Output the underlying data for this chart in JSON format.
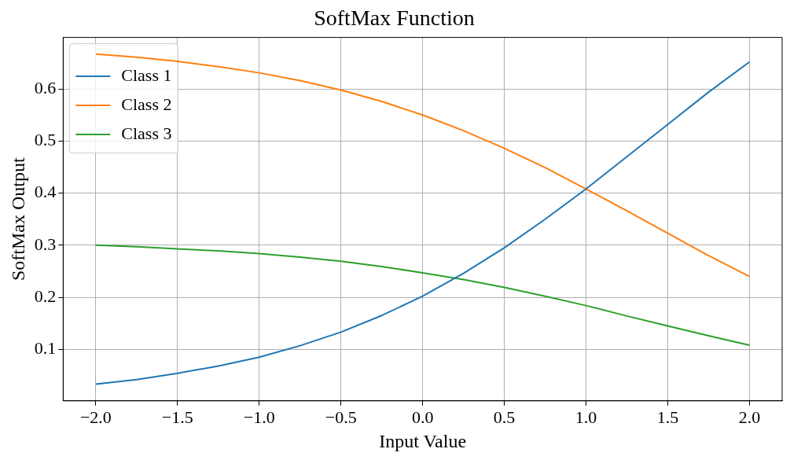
{
  "chart_data": {
    "type": "line",
    "title": "SoftMax Function",
    "xlabel": "Input Value",
    "ylabel": "SoftMax Output",
    "x": [
      -2,
      -1.75,
      -1.5,
      -1.25,
      -1,
      -0.75,
      -0.5,
      -0.25,
      0,
      0.25,
      0.5,
      0.75,
      1,
      1.25,
      1.5,
      1.75,
      2
    ],
    "series": [
      {
        "name": "Class 1",
        "color": "#1f77b4",
        "values": [
          0.033,
          0.042,
          0.054,
          0.068,
          0.085,
          0.107,
          0.133,
          0.165,
          0.202,
          0.246,
          0.295,
          0.35,
          0.408,
          0.47,
          0.532,
          0.594,
          0.652
        ]
      },
      {
        "name": "Class 2",
        "color": "#ff7f0e",
        "values": [
          0.667,
          0.661,
          0.653,
          0.643,
          0.631,
          0.616,
          0.598,
          0.576,
          0.55,
          0.52,
          0.486,
          0.449,
          0.408,
          0.366,
          0.323,
          0.28,
          0.24
        ]
      },
      {
        "name": "Class 3",
        "color": "#2ca02c",
        "values": [
          0.3,
          0.297,
          0.293,
          0.289,
          0.284,
          0.277,
          0.269,
          0.259,
          0.247,
          0.234,
          0.219,
          0.202,
          0.184,
          0.164,
          0.145,
          0.126,
          0.108
        ]
      }
    ],
    "xlim": [
      -2.2,
      2.2
    ],
    "ylim": [
      0.001,
      0.699
    ],
    "xticks": [
      {
        "value": -2,
        "label": "−2.0"
      },
      {
        "value": -1.5,
        "label": "−1.5"
      },
      {
        "value": -1,
        "label": "−1.0"
      },
      {
        "value": -0.5,
        "label": "−0.5"
      },
      {
        "value": 0,
        "label": "0.0"
      },
      {
        "value": 0.5,
        "label": "0.5"
      },
      {
        "value": 1,
        "label": "1.0"
      },
      {
        "value": 1.5,
        "label": "1.5"
      },
      {
        "value": 2,
        "label": "2.0"
      }
    ],
    "yticks": [
      0.1,
      0.2,
      0.3,
      0.4,
      0.5,
      0.6
    ],
    "grid": true,
    "legend": "top left",
    "marker": "none",
    "line_style": "solid"
  }
}
